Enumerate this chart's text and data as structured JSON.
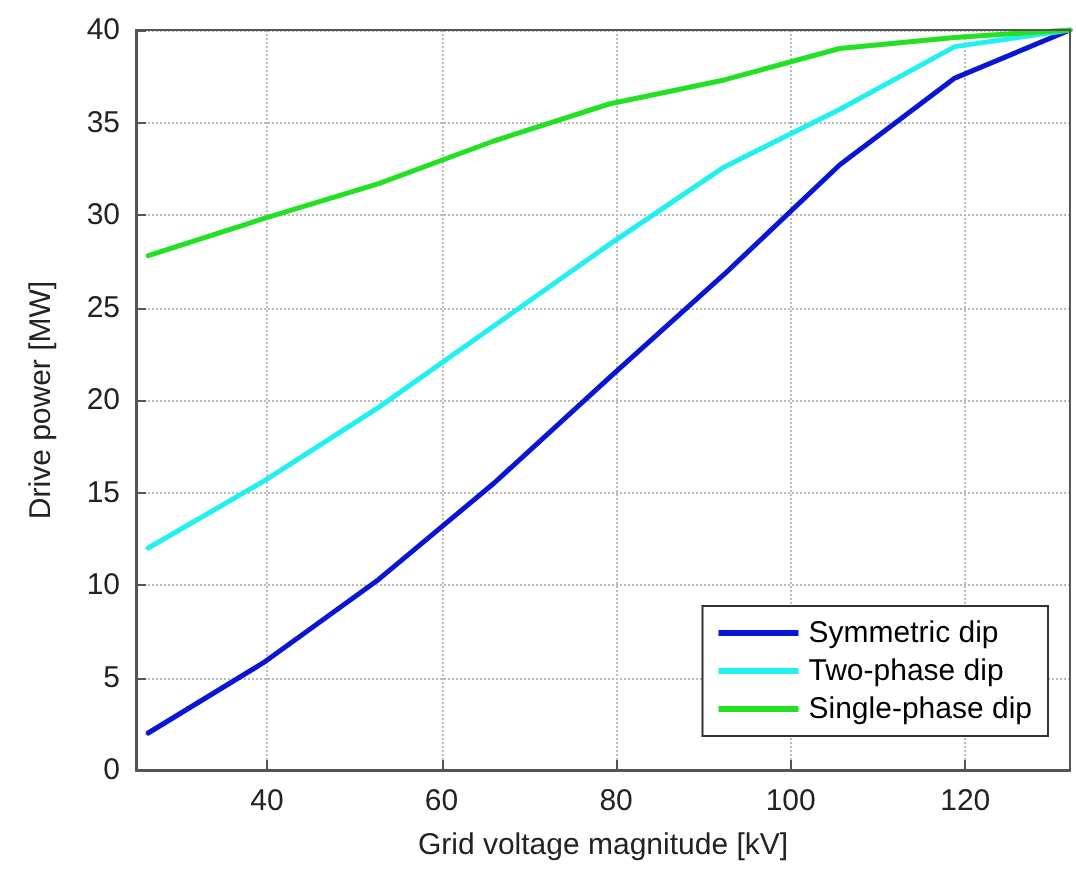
{
  "chart_data": {
    "type": "line",
    "xlabel": "Grid voltage magnitude [kV]",
    "ylabel": "Drive power [MW]",
    "x": [
      26.4,
      39.6,
      52.8,
      66,
      79.2,
      92.4,
      105.6,
      118.8,
      132
    ],
    "series": [
      {
        "name": "Symmetric dip",
        "color": "#0a14d4",
        "values": [
          2.0,
          5.8,
          10.3,
          15.5,
          21.2,
          26.8,
          32.7,
          37.4,
          40
        ]
      },
      {
        "name": "Two-phase dip",
        "color": "#22f0f0",
        "values": [
          12.0,
          15.6,
          19.6,
          24.0,
          28.4,
          32.6,
          35.7,
          39.1,
          40
        ]
      },
      {
        "name": "Single-phase dip",
        "color": "#22e022",
        "values": [
          27.8,
          29.8,
          31.7,
          34.0,
          36.0,
          37.3,
          39.0,
          39.6,
          40
        ]
      }
    ],
    "xlim": [
      25,
      132
    ],
    "xticks": [
      40,
      60,
      80,
      100,
      120
    ],
    "ylim": [
      0,
      40
    ],
    "yticks": [
      0,
      5,
      10,
      15,
      20,
      25,
      30,
      35,
      40
    ],
    "grid": true,
    "legend": "bottom right",
    "marker": "none",
    "line_style": "solid"
  }
}
